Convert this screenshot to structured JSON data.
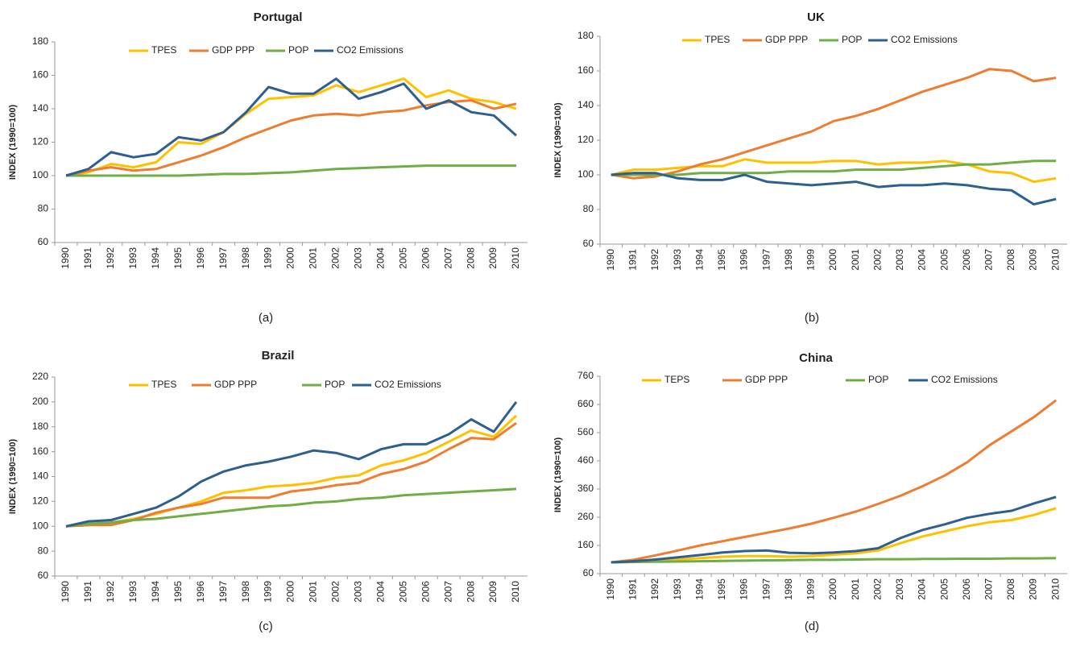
{
  "chart_data": [
    {
      "type": "line",
      "title": "Portugal",
      "y_label": "INDEX (1990=100)",
      "caption": "(a)",
      "categories": [
        "1990",
        "1991",
        "1992",
        "1993",
        "1994",
        "1995",
        "1996",
        "1997",
        "1998",
        "1999",
        "2000",
        "2001",
        "2002",
        "2003",
        "2004",
        "2005",
        "2006",
        "2007",
        "2008",
        "2009",
        "2010"
      ],
      "series": [
        {
          "name": "TPES",
          "color": "#ffc000",
          "values": [
            100,
            102,
            107,
            105,
            108,
            120,
            119,
            126,
            137,
            146,
            147,
            148,
            154,
            150,
            154,
            158,
            147,
            151,
            146,
            144,
            140
          ]
        },
        {
          "name": "GDP PPP",
          "color": "#ed7d31",
          "values": [
            100,
            103,
            105,
            103,
            104,
            108,
            112,
            117,
            123,
            128,
            133,
            136,
            137,
            136,
            138,
            139,
            142,
            144,
            145,
            140,
            143
          ]
        },
        {
          "name": "POP",
          "color": "#70ad47",
          "values": [
            100,
            100,
            100,
            100,
            100,
            100,
            100.5,
            101,
            101,
            101.5,
            102,
            103,
            104,
            104.5,
            105,
            105.5,
            106,
            106,
            106,
            106,
            106
          ]
        },
        {
          "name": "CO2  Emissions",
          "color": "#2e5f8f",
          "values": [
            100,
            104,
            114,
            111,
            113,
            123,
            121,
            126,
            138,
            153,
            149,
            149,
            158,
            146,
            150,
            155,
            140,
            145,
            138,
            136,
            124
          ]
        }
      ],
      "ylim": [
        60,
        180
      ],
      "yticks": [
        60,
        80,
        100,
        120,
        140,
        160,
        180
      ]
    },
    {
      "type": "line",
      "title": "UK",
      "y_label": "INDEX (1990=100)",
      "caption": "(b)",
      "categories": [
        "1990",
        "1991",
        "1992",
        "1993",
        "1994",
        "1995",
        "1996",
        "1997",
        "1998",
        "1999",
        "2000",
        "2001",
        "2002",
        "2003",
        "2004",
        "2005",
        "2006",
        "2007",
        "2008",
        "2009",
        "2010"
      ],
      "series": [
        {
          "name": "TPES",
          "color": "#ffc000",
          "values": [
            100,
            103,
            103,
            104,
            105,
            105,
            109,
            107,
            107,
            107,
            108,
            108,
            106,
            107,
            107,
            108,
            106,
            102,
            101,
            96,
            98
          ]
        },
        {
          "name": "GDP PPP",
          "color": "#ed7d31",
          "values": [
            100,
            98,
            99,
            102,
            106,
            109,
            113,
            117,
            121,
            125,
            131,
            134,
            138,
            143,
            148,
            152,
            156,
            161,
            160,
            154,
            156
          ]
        },
        {
          "name": "POP",
          "color": "#70ad47",
          "values": [
            100,
            100,
            100,
            100,
            101,
            101,
            101,
            101,
            102,
            102,
            102,
            103,
            103,
            103,
            104,
            105,
            106,
            106,
            107,
            108,
            108
          ]
        },
        {
          "name": "CO2  Emissions",
          "color": "#2e5f8f",
          "values": [
            100,
            101,
            101,
            98,
            97,
            97,
            100,
            96,
            95,
            94,
            95,
            96,
            93,
            94,
            94,
            95,
            94,
            92,
            91,
            83,
            86
          ]
        }
      ],
      "ylim": [
        60,
        180
      ],
      "yticks": [
        60,
        80,
        100,
        120,
        140,
        160,
        180
      ]
    },
    {
      "type": "line",
      "title": "Brazil",
      "y_label": "INDEX (1990=100)",
      "caption": "(c)",
      "categories": [
        "1990",
        "1991",
        "1992",
        "1993",
        "1994",
        "1995",
        "1996",
        "1997",
        "1998",
        "1999",
        "2000",
        "2001",
        "2002",
        "2003",
        "2004",
        "2005",
        "2006",
        "2007",
        "2008",
        "2009",
        "2010"
      ],
      "series": [
        {
          "name": "TPES",
          "color": "#ffc000",
          "values": [
            100,
            101,
            103,
            106,
            110,
            115,
            120,
            127,
            129,
            132,
            133,
            135,
            139,
            141,
            149,
            153,
            159,
            168,
            177,
            172,
            189
          ]
        },
        {
          "name": "GDP PPP",
          "color": "#ed7d31",
          "values": [
            100,
            101,
            101,
            105,
            111,
            115,
            118,
            123,
            123,
            123,
            128,
            130,
            133,
            135,
            142,
            146,
            152,
            162,
            171,
            170,
            183
          ]
        },
        {
          "name": "POP",
          "color": "#70ad47",
          "values": [
            100,
            102,
            103,
            105,
            106,
            108,
            110,
            112,
            114,
            116,
            117,
            119,
            120,
            122,
            123,
            125,
            126,
            127,
            128,
            129,
            130
          ]
        },
        {
          "name": "CO2  Emissions",
          "color": "#2e5f8f",
          "values": [
            100,
            104,
            105,
            110,
            115,
            124,
            136,
            144,
            149,
            152,
            156,
            161,
            159,
            154,
            162,
            166,
            166,
            174,
            186,
            176,
            200
          ]
        }
      ],
      "ylim": [
        60,
        220
      ],
      "yticks": [
        60,
        80,
        100,
        120,
        140,
        160,
        180,
        200,
        220
      ]
    },
    {
      "type": "line",
      "title": "China",
      "y_label": "INDEX (1990=100)",
      "caption": "(d)",
      "categories": [
        "1990",
        "1991",
        "1992",
        "1993",
        "1994",
        "1995",
        "1996",
        "1997",
        "1998",
        "1999",
        "2000",
        "2001",
        "2002",
        "2003",
        "2004",
        "2005",
        "2006",
        "2007",
        "2008",
        "2009",
        "2010"
      ],
      "series": [
        {
          "name": "TEPS",
          "color": "#ffc000",
          "values": [
            100,
            102,
            104,
            110,
            115,
            120,
            122,
            122,
            120,
            122,
            127,
            132,
            142,
            168,
            192,
            210,
            228,
            242,
            250,
            268,
            292
          ]
        },
        {
          "name": "GDP PPP",
          "color": "#ed7d31",
          "values": [
            100,
            109,
            125,
            142,
            160,
            175,
            190,
            205,
            220,
            237,
            258,
            280,
            307,
            336,
            370,
            408,
            455,
            515,
            565,
            615,
            675
          ]
        },
        {
          "name": "POP",
          "color": "#70ad47",
          "values": [
            100,
            101,
            102,
            103,
            104,
            105,
            106,
            107,
            108,
            109,
            109,
            110,
            111,
            111,
            112,
            112,
            113,
            113,
            114,
            114,
            115
          ]
        },
        {
          "name": "CO2 Emissions",
          "color": "#2e5f8f",
          "values": [
            100,
            104,
            110,
            118,
            126,
            135,
            140,
            142,
            134,
            132,
            135,
            140,
            150,
            186,
            215,
            235,
            258,
            272,
            283,
            309,
            332
          ]
        }
      ],
      "ylim": [
        60,
        760
      ],
      "yticks": [
        60,
        160,
        260,
        360,
        460,
        560,
        660,
        760
      ]
    }
  ]
}
